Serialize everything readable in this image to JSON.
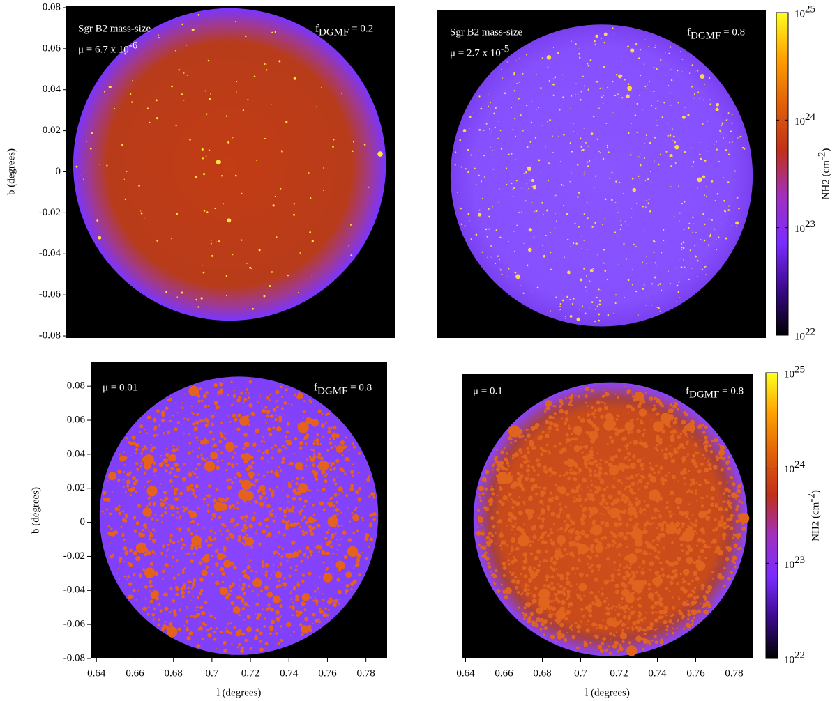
{
  "chart_data": [
    {
      "type": "image",
      "ylabel": "b (degrees)",
      "ylim": [
        -0.081,
        0.081
      ],
      "yticks": [
        -0.08,
        -0.06,
        -0.04,
        -0.02,
        0,
        0.02,
        0.04,
        0.06,
        0.08
      ],
      "annotations": [
        {
          "parts": [
            "Sgr B2 mass-size"
          ],
          "styles": [
            "normal"
          ]
        },
        {
          "parts": [
            "μ = 6.7 x 10",
            "-6"
          ],
          "styles": [
            "normal",
            "sup"
          ]
        },
        {
          "parts": [
            "f",
            "DGMF",
            " = 0.2"
          ],
          "styles": [
            "normal",
            "sub",
            "normal"
          ]
        }
      ]
    },
    {
      "type": "image",
      "annotations": [
        {
          "parts": [
            "Sgr B2 mass-size"
          ],
          "styles": [
            "normal"
          ]
        },
        {
          "parts": [
            "μ = 2.7 x 10",
            "-5"
          ],
          "styles": [
            "normal",
            "sup"
          ]
        },
        {
          "parts": [
            "f",
            "DGMF",
            " = 0.8"
          ],
          "styles": [
            "normal",
            "sub",
            "normal"
          ]
        }
      ],
      "colorbar": {
        "log": true,
        "clim": [
          1e+22,
          1e+25
        ],
        "colors": [
          "#000000",
          "#3a0a8a",
          "#7a2cff",
          "#a030c0",
          "#c0301a",
          "#e0600a",
          "#ffa000",
          "#ffff20"
        ],
        "ticks": [
          {
            "value": 1e+22,
            "label": "10",
            "exponent": "22"
          },
          {
            "value": 1e+23,
            "label": "10",
            "exponent": "23"
          },
          {
            "value": 1e+24,
            "label": "10",
            "exponent": "24"
          },
          {
            "value": 1e+25,
            "label": "10",
            "exponent": "25"
          }
        ],
        "label": {
          "parts": [
            "NH2 (cm",
            "-2",
            ")"
          ],
          "styles": [
            "normal",
            "sup",
            "normal"
          ]
        }
      }
    },
    {
      "type": "image",
      "xlabel": "l (degrees)",
      "ylabel": "b (degrees)",
      "xlim": [
        0.637,
        0.791
      ],
      "xticks": [
        0.64,
        0.66,
        0.68,
        0.7,
        0.72,
        0.74,
        0.76,
        0.78
      ],
      "ylim": [
        -0.08,
        0.094
      ],
      "yticks": [
        -0.08,
        -0.06,
        -0.04,
        -0.02,
        0,
        0.02,
        0.04,
        0.06,
        0.08
      ],
      "annotations": [
        {
          "parts": [
            "μ = 0.01"
          ],
          "styles": [
            "normal"
          ]
        },
        {
          "parts": [
            "f",
            "DGMF",
            " = 0.8"
          ],
          "styles": [
            "normal",
            "sub",
            "normal"
          ]
        }
      ]
    },
    {
      "type": "image",
      "xlabel": "l (degrees)",
      "xlim": [
        0.638,
        0.79
      ],
      "xticks": [
        0.64,
        0.66,
        0.68,
        0.7,
        0.72,
        0.74,
        0.76,
        0.78
      ],
      "annotations": [
        {
          "parts": [
            "μ = 0.1"
          ],
          "styles": [
            "normal"
          ]
        },
        {
          "parts": [
            "f",
            "DGMF",
            " = 0.8"
          ],
          "styles": [
            "normal",
            "sub",
            "normal"
          ]
        }
      ],
      "colorbar": {
        "log": true,
        "clim": [
          1e+22,
          1e+25
        ],
        "colors": [
          "#000000",
          "#3a0a8a",
          "#7a2cff",
          "#a030c0",
          "#c0301a",
          "#e0600a",
          "#ffa000",
          "#ffff20"
        ],
        "ticks": [
          {
            "value": 1e+22,
            "label": "10",
            "exponent": "22"
          },
          {
            "value": 1e+23,
            "label": "10",
            "exponent": "23"
          },
          {
            "value": 1e+24,
            "label": "10",
            "exponent": "24"
          },
          {
            "value": 1e+25,
            "label": "10",
            "exponent": "25"
          }
        ],
        "label": {
          "parts": [
            "NH2 (cm",
            "-2",
            ")"
          ],
          "styles": [
            "normal",
            "sup",
            "normal"
          ]
        }
      }
    }
  ]
}
